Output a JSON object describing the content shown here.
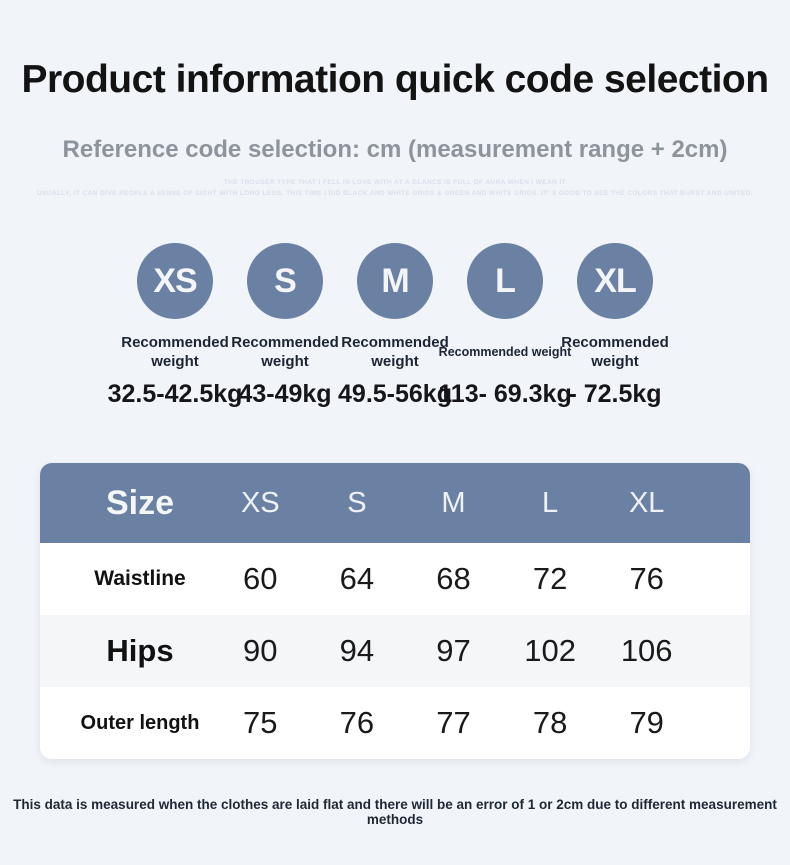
{
  "page": {
    "title": "Product information quick code selection",
    "subtitle": "Reference code selection: cm (measurement range + 2cm)",
    "watermark_line1": "THE TROUSER TYPE THAT I FELL IN LOVE WITH AT A GLANCE IS FULL OF AURA WHEN I WEAR IT",
    "watermark_line2": "USUALLY, IT CAN GIVE PEOPLE A SENSE OF SIGHT WITH LONG LEGS. THIS TIME I DID BLACK AND WHITE GRIDS & GREEN AND WHITE GRIDS. IT' S GOOD TO SEE THE COLORS THAT BURST AND UNITED.",
    "footer_note": "This data is measured when the clothes are laid flat and there will be an error of 1 or 2cm due to different measurement methods"
  },
  "colors": {
    "accent_blue_gray": "#6b81a4",
    "page_background": "#f1f4f9",
    "alt_row": "#f5f6f8",
    "title_text": "#131313",
    "subtitle_text": "#8e949c"
  },
  "sizes": [
    {
      "code": "XS",
      "label": "Recommended weight",
      "weight": "32.5-42.5kg"
    },
    {
      "code": "S",
      "label": "Recommended weight",
      "weight": "43-49kg"
    },
    {
      "code": "M",
      "label": "Recommended weight",
      "weight": "49.5-56kg"
    },
    {
      "code": "L",
      "label": "Recommended weight",
      "weight": "113- 69.3kg"
    },
    {
      "code": "XL",
      "label": "Recommended weight",
      "weight": "- 72.5kg"
    }
  ],
  "size_table": {
    "header": [
      "Size",
      "XS",
      "S",
      "M",
      "L",
      "XL"
    ],
    "rows": [
      {
        "label": "Waistline",
        "values": [
          "60",
          "64",
          "68",
          "72",
          "76"
        ]
      },
      {
        "label": "Hips",
        "values": [
          "90",
          "94",
          "97",
          "102",
          "106"
        ]
      },
      {
        "label": "Outer length",
        "values": [
          "75",
          "76",
          "77",
          "78",
          "79"
        ]
      }
    ]
  }
}
